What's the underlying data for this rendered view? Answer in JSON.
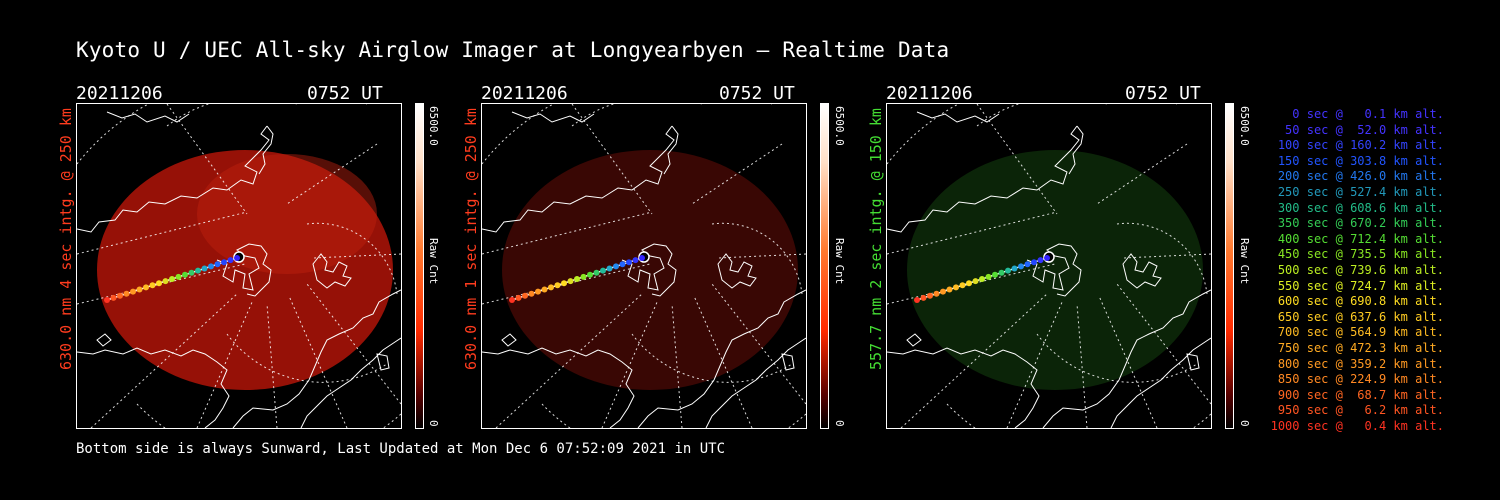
{
  "title": "Kyoto U / UEC All-sky Airglow Imager at Longyearbyen — Realtime Data",
  "footer": "Bottom side is always Sunward, Last Updated at Mon Dec  6 07:52:09 2021 in UTC",
  "panels": [
    {
      "date": "20211206",
      "time": "0752 UT",
      "side_label": "630.0 nm 4 sec intg. @ 250 km",
      "label_color": "#ff3c1e",
      "glow_color": "#a31208",
      "glow_opacity": 0.92,
      "cbar_max": "6500.0",
      "cbar_unit": "Raw Cnt",
      "cbar_min": "0",
      "cbar_color": "#ff2a00"
    },
    {
      "date": "20211206",
      "time": "0752 UT",
      "side_label": "630.0 nm 1 sec intg. @ 250 km",
      "label_color": "#ff3c1e",
      "glow_color": "#3c0704",
      "glow_opacity": 0.95,
      "cbar_max": "6500.0",
      "cbar_unit": "Raw Cnt",
      "cbar_min": "0",
      "cbar_color": "#ff2a00"
    },
    {
      "date": "20211206",
      "time": "0752 UT",
      "side_label": "557.7 nm 2 sec intg. @ 150 km",
      "label_color": "#44dd33",
      "glow_color": "#0c2608",
      "glow_opacity": 0.95,
      "cbar_max": "6500.0",
      "cbar_unit": "Raw Cnt",
      "cbar_min": "0",
      "cbar_color": "#ff2a00"
    }
  ],
  "legend": [
    {
      "text": "0 sec @   0.1 km alt.",
      "color": "#4433ff"
    },
    {
      "text": "50 sec @  52.0 km alt.",
      "color": "#4433ff"
    },
    {
      "text": "100 sec @ 160.2 km alt.",
      "color": "#3344ff"
    },
    {
      "text": "150 sec @ 303.8 km alt.",
      "color": "#2255ff"
    },
    {
      "text": "200 sec @ 426.0 km alt.",
      "color": "#2277ee"
    },
    {
      "text": "250 sec @ 527.4 km alt.",
      "color": "#2299bb"
    },
    {
      "text": "300 sec @ 608.6 km alt.",
      "color": "#22bb88"
    },
    {
      "text": "350 sec @ 670.2 km alt.",
      "color": "#33cc55"
    },
    {
      "text": "400 sec @ 712.4 km alt.",
      "color": "#55dd33"
    },
    {
      "text": "450 sec @ 735.5 km alt.",
      "color": "#88e622"
    },
    {
      "text": "500 sec @ 739.6 km alt.",
      "color": "#bbee22"
    },
    {
      "text": "550 sec @ 724.7 km alt.",
      "color": "#ddee22"
    },
    {
      "text": "600 sec @ 690.8 km alt.",
      "color": "#ffdd22"
    },
    {
      "text": "650 sec @ 637.6 km alt.",
      "color": "#ffcc22"
    },
    {
      "text": "700 sec @ 564.9 km alt.",
      "color": "#ffbb22"
    },
    {
      "text": "750 sec @ 472.3 km alt.",
      "color": "#ffaa22"
    },
    {
      "text": "800 sec @ 359.2 km alt.",
      "color": "#ff9922"
    },
    {
      "text": "850 sec @ 224.9 km alt.",
      "color": "#ff8822"
    },
    {
      "text": "900 sec @  68.7 km alt.",
      "color": "#ff6622"
    },
    {
      "text": "950 sec @   6.2 km alt.",
      "color": "#ff5522"
    },
    {
      "text": "1000 sec @   0.4 km alt.",
      "color": "#ff3322"
    }
  ]
}
